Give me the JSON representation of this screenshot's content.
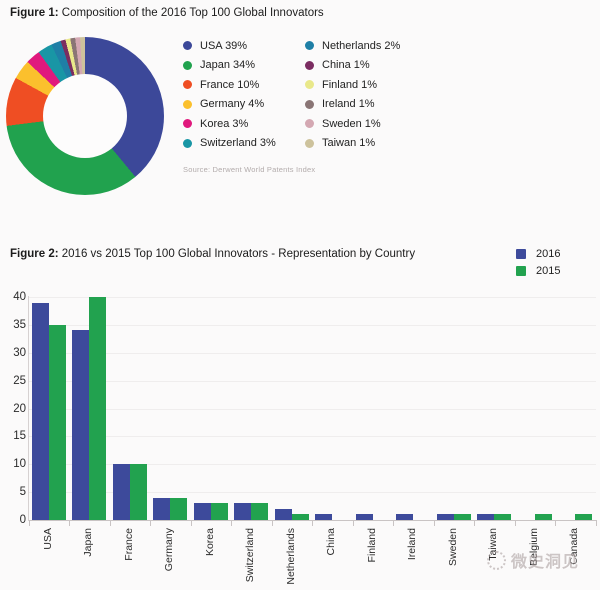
{
  "page": {
    "background": "#fbfafa"
  },
  "figure1": {
    "title_prefix": "Figure 1:",
    "title_rest": " Composition of the 2016 Top 100 Global Innovators"
  },
  "figure2": {
    "title_prefix": "Figure 2:",
    "title_rest": " 2016 vs 2015 Top 100 Global Innovators - Representation by Country"
  },
  "watermark": {
    "text": "微史洞见"
  },
  "chart_data": [
    {
      "type": "pie",
      "subtype": "donut",
      "title": "Composition of the 2016 Top 100 Global Innovators",
      "labels": [
        "USA",
        "Japan",
        "France",
        "Germany",
        "Korea",
        "Switzerland",
        "Netherlands",
        "China",
        "Finland",
        "Ireland",
        "Sweden",
        "Taiwan"
      ],
      "values": [
        39,
        34,
        10,
        4,
        3,
        3,
        2,
        1,
        1,
        1,
        1,
        1
      ],
      "unit": "%",
      "colors": [
        "#3c4899",
        "#21a24e",
        "#ef4e23",
        "#fbc02d",
        "#e0197d",
        "#1996a5",
        "#1f7fa6",
        "#7b2d61",
        "#e9e88a",
        "#8a7575",
        "#d4a8b2",
        "#cdc29c"
      ],
      "legend_labels": [
        "USA 39%",
        "Japan 34%",
        "France 10%",
        "Germany 4%",
        "Korea 3%",
        "Switzerland 3%",
        "Netherlands 2%",
        "China 1%",
        "Finland 1%",
        "Ireland 1%",
        "Sweden 1%",
        "Taiwan 1%"
      ],
      "start_angle_deg": 0,
      "direction": "clockwise",
      "legend_position": "right",
      "source_note": "Source: Derwent World Patents Index"
    },
    {
      "type": "bar",
      "title": "2016 vs 2015 Top 100 Global Innovators - Representation by Country",
      "categories": [
        "USA",
        "Japan",
        "France",
        "Germany",
        "Korea",
        "Switzerland",
        "Netherlands",
        "China",
        "Finland",
        "Ireland",
        "Sweden",
        "Taiwan",
        "Belgium",
        "Canada"
      ],
      "series": [
        {
          "name": "2016",
          "color": "#3d4a9b",
          "values": [
            39,
            34,
            10,
            4,
            3,
            3,
            2,
            1,
            1,
            1,
            1,
            1,
            0,
            0
          ]
        },
        {
          "name": "2015",
          "color": "#22a24f",
          "values": [
            35,
            40,
            10,
            4,
            3,
            3,
            1,
            0,
            0,
            0,
            1,
            1,
            1,
            1
          ]
        }
      ],
      "ylim": [
        0,
        40
      ],
      "ytick_step": 5,
      "grid": true,
      "legend_position": "top-right"
    }
  ]
}
